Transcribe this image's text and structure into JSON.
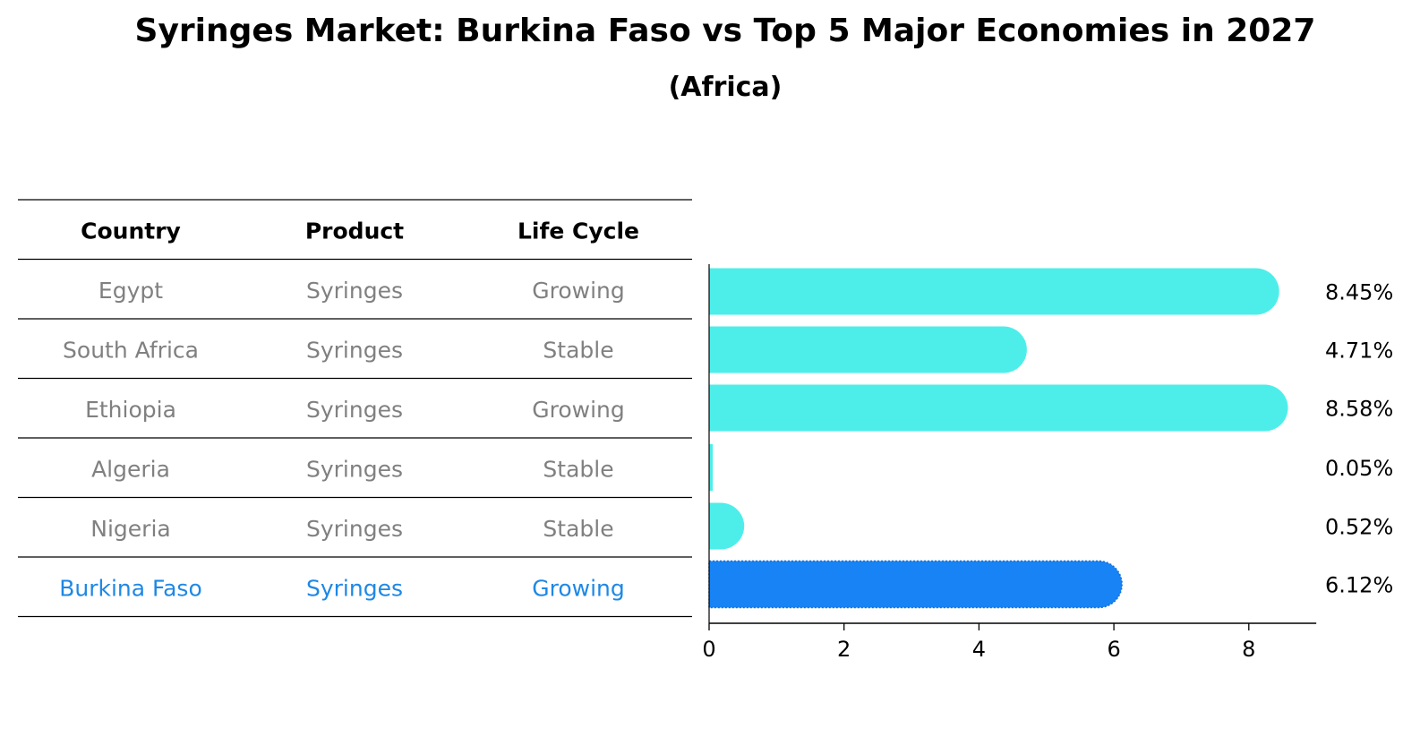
{
  "title": "Syringes Market: Burkina Faso vs Top 5 Major Economies in 2027",
  "subtitle": "(Africa)",
  "colors": {
    "bar": "#4DEEEA",
    "highlight_bar": "#1783F5",
    "row_text": "#808080",
    "highlight_text": "#1E88E5"
  },
  "table": {
    "headers": [
      "Country",
      "Product",
      "Life Cycle"
    ],
    "rows": [
      [
        "Egypt",
        "Syringes",
        "Growing"
      ],
      [
        "South Africa",
        "Syringes",
        "Stable"
      ],
      [
        "Ethiopia",
        "Syringes",
        "Growing"
      ],
      [
        "Algeria",
        "Syringes",
        "Stable"
      ],
      [
        "Nigeria",
        "Syringes",
        "Stable"
      ],
      [
        "Burkina Faso",
        "Syringes",
        "Growing"
      ]
    ],
    "highlight_row": 5
  },
  "chart_data": {
    "type": "bar",
    "orientation": "horizontal",
    "categories": [
      "Egypt",
      "South Africa",
      "Ethiopia",
      "Algeria",
      "Nigeria",
      "Burkina Faso"
    ],
    "values": [
      8.45,
      4.71,
      8.58,
      0.05,
      0.52,
      6.12
    ],
    "value_labels": [
      "8.45%",
      "4.71%",
      "8.58%",
      "0.05%",
      "0.52%",
      "6.12%"
    ],
    "xlim": [
      0,
      9
    ],
    "xticks": [
      0,
      2,
      4,
      6,
      8
    ],
    "grid": false,
    "highlight": "Burkina Faso"
  }
}
